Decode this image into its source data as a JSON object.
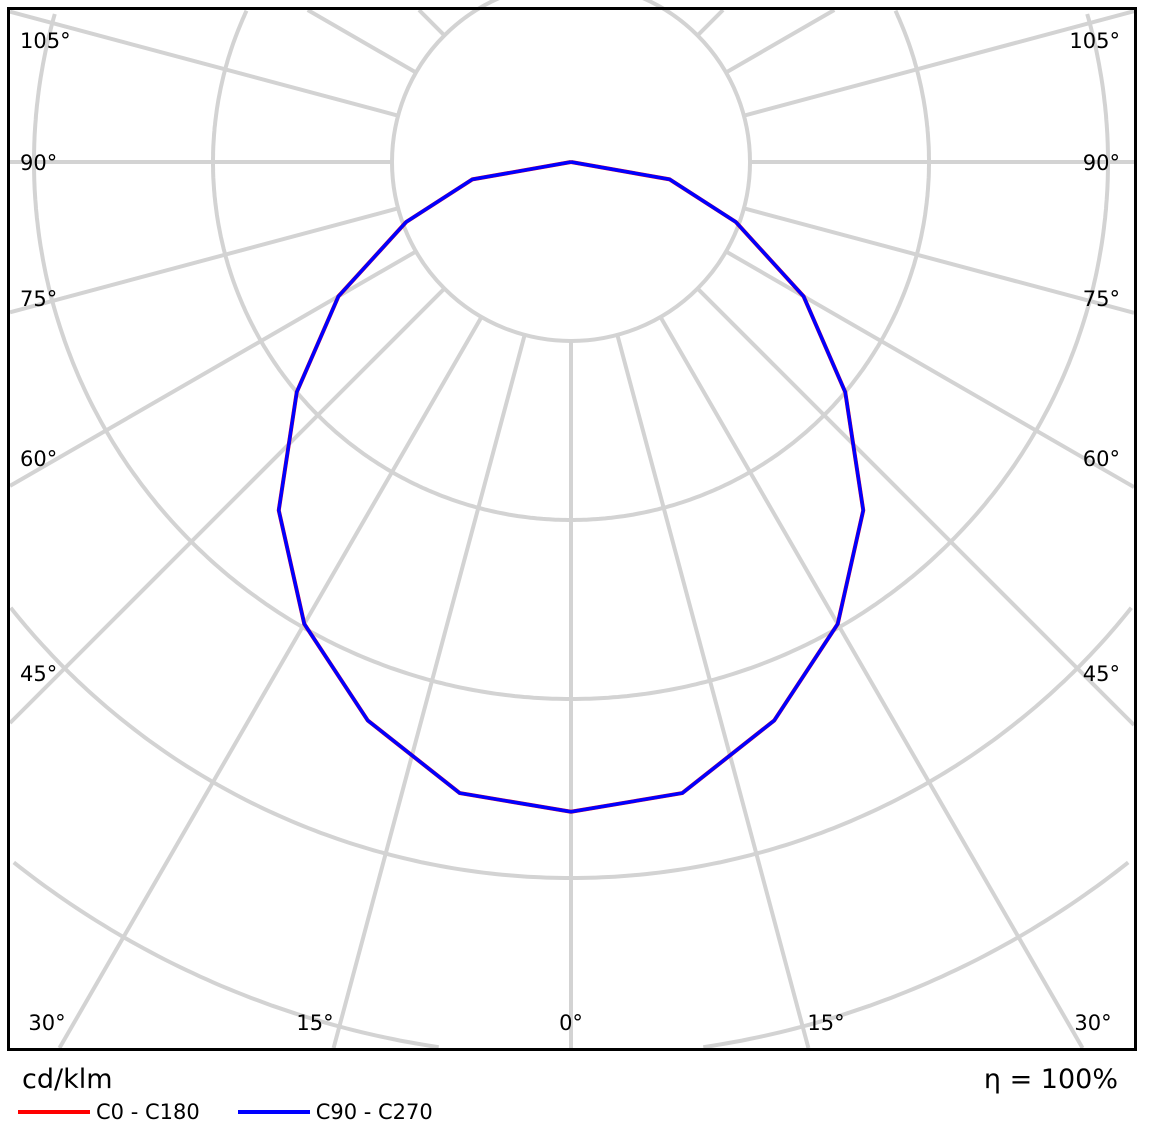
{
  "chart_data": {
    "type": "polar-line",
    "unit_label": "cd/klm",
    "efficiency_label": "η = 100%",
    "angle_labels_side": [
      "105°",
      "90°",
      "75°",
      "60°",
      "45°"
    ],
    "angle_labels_bottom": [
      "30°",
      "15°",
      "0°",
      "15°",
      "30°"
    ],
    "gamma_deg": [
      0,
      10,
      20,
      30,
      40,
      50,
      60,
      70,
      80,
      90
    ],
    "series": [
      {
        "name": "C0 - C180",
        "color": "#ff0000",
        "values": [
          3.63,
          3.58,
          3.32,
          2.98,
          2.54,
          2.0,
          1.5,
          0.98,
          0.56,
          0
        ]
      },
      {
        "name": "C90 - C270",
        "color": "#0000ff",
        "values": [
          3.63,
          3.58,
          3.32,
          2.98,
          2.54,
          2.0,
          1.5,
          0.98,
          0.56,
          0
        ]
      }
    ],
    "grid": true,
    "spoke_step_deg": 15,
    "legend_position": "bottom-left"
  }
}
